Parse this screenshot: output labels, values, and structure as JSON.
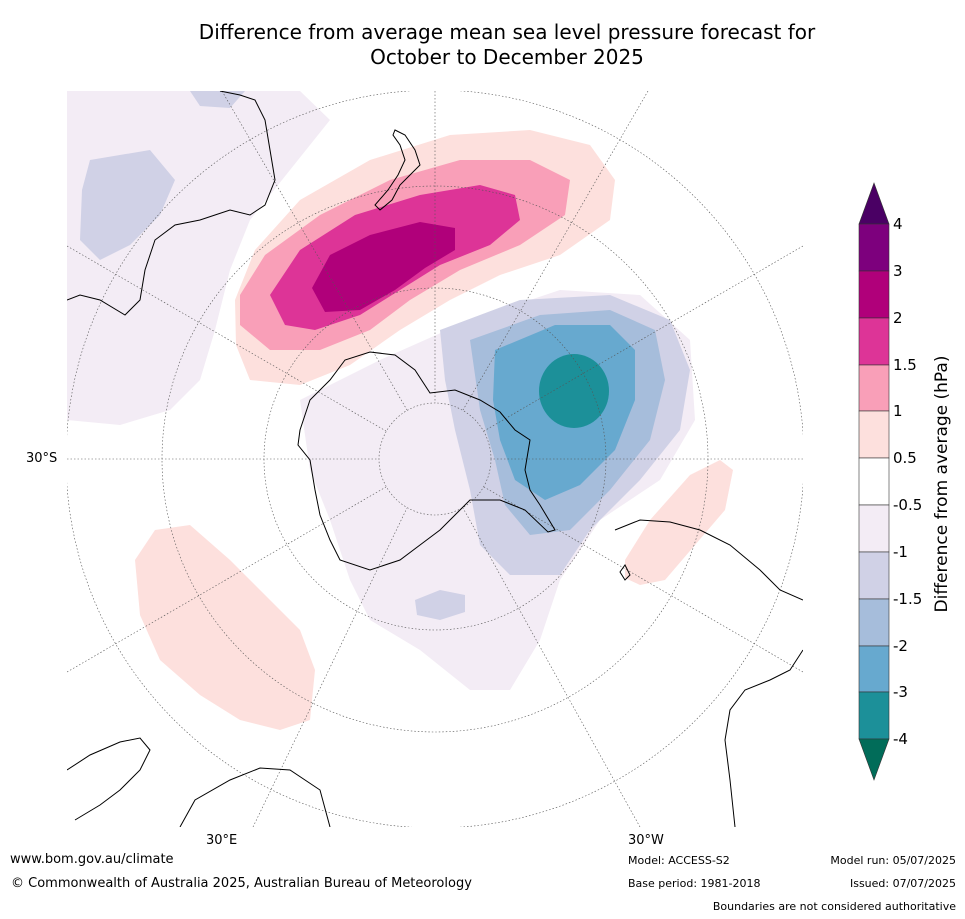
{
  "title": {
    "line1": "Difference from average mean sea level pressure forecast for",
    "line2": "October to December 2025"
  },
  "map": {
    "projection": "south polar stereographic",
    "lat_label": "30°S",
    "lon_labels": [
      "30°E",
      "30°W"
    ]
  },
  "colorbar": {
    "title": "Difference from average (hPa)",
    "tick_labels": [
      "4",
      "3",
      "2",
      "1.5",
      "1",
      "0.5",
      "-0.5",
      "-1",
      "-1.5",
      "-2",
      "-3",
      "-4"
    ],
    "colors": {
      "above_4": "#4a0064",
      "3_to_4": "#7d007d",
      "2_to_3": "#b0007a",
      "1.5_to_2": "#dd3497",
      "1_to_1.5": "#f99fb8",
      "0.5_to_1": "#fde0dd",
      "-0.5_to_0.5": "#ffffff",
      "-1_to_-0.5": "#f3ecf5",
      "-1.5_to_-1": "#d0d1e6",
      "-2_to_-1.5": "#a6bddb",
      "-3_to_-2": "#67a9cf",
      "-4_to_-3": "#1c9099",
      "below_-4": "#016c59"
    }
  },
  "footer": {
    "website": "www.bom.gov.au/climate",
    "copyright": "© Commonwealth of Australia 2025, Australian Bureau of Meteorology",
    "model": "Model: ACCESS-S2",
    "base_period": "Base period: 1981-2018",
    "model_run": "Model run: 05/07/2025",
    "issued": "Issued: 07/07/2025",
    "disclaimer": "Boundaries are not considered authoritative"
  }
}
